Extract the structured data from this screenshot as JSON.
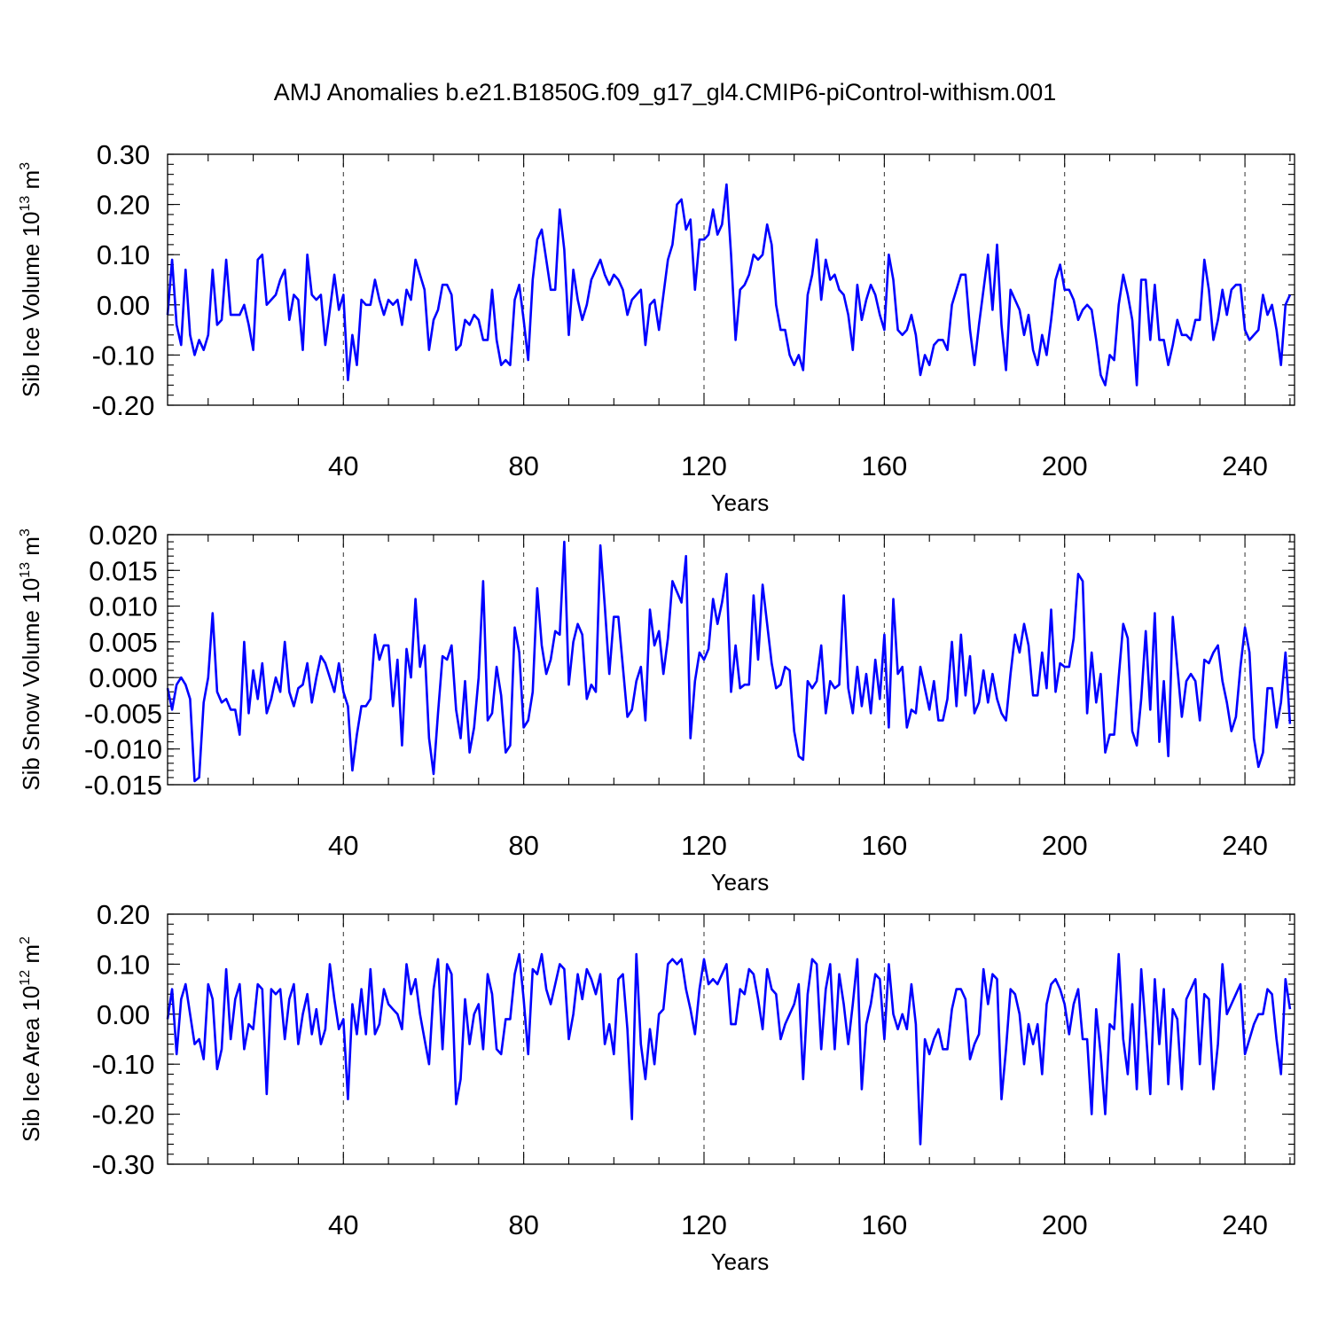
{
  "title": "AMJ Anomalies b.e21.B1850G.f09_g17_gl4.CMIP6-piControl-withism.001",
  "line_color": "#0000ff",
  "chart_data": [
    {
      "type": "line",
      "name": "sib-ice-volume",
      "ylabel_main": "Sib Ice Volume 10",
      "ylabel_exp": "13",
      "ylabel_unit": "m",
      "ylabel_unit_exp": "3",
      "xlabel": "Years",
      "xlim": [
        1,
        251
      ],
      "ylim": [
        -0.2,
        0.3
      ],
      "x_ticks": [
        40,
        80,
        120,
        160,
        200,
        240
      ],
      "x_tick_labels": [
        "40",
        "80",
        "120",
        "160",
        "200",
        "240"
      ],
      "y_ticks": [
        -0.2,
        -0.1,
        0.0,
        0.1,
        0.2,
        0.3
      ],
      "y_tick_labels": [
        "-0.20",
        "-0.10",
        "0.00",
        "0.10",
        "0.20",
        "0.30"
      ],
      "y_minor": 0.02,
      "grid_x": true,
      "x_start": 1,
      "values": [
        -0.02,
        0.09,
        -0.04,
        -0.08,
        0.07,
        -0.06,
        -0.1,
        -0.07,
        -0.09,
        -0.06,
        0.07,
        -0.04,
        -0.03,
        0.09,
        -0.02,
        -0.02,
        -0.02,
        0.0,
        -0.04,
        -0.09,
        0.09,
        0.1,
        0.0,
        0.01,
        0.02,
        0.05,
        0.07,
        -0.03,
        0.02,
        0.01,
        -0.09,
        0.1,
        0.02,
        0.01,
        0.02,
        -0.08,
        -0.01,
        0.06,
        -0.01,
        0.02,
        -0.15,
        -0.06,
        -0.12,
        0.01,
        0.0,
        0.0,
        0.05,
        0.01,
        -0.02,
        0.01,
        0.0,
        0.01,
        -0.04,
        0.03,
        0.01,
        0.09,
        0.06,
        0.03,
        -0.09,
        -0.03,
        -0.01,
        0.04,
        0.04,
        0.02,
        -0.09,
        -0.08,
        -0.03,
        -0.04,
        -0.02,
        -0.03,
        -0.07,
        -0.07,
        0.03,
        -0.07,
        -0.12,
        -0.11,
        -0.12,
        0.01,
        0.04,
        -0.03,
        -0.11,
        0.05,
        0.13,
        0.15,
        0.09,
        0.03,
        0.03,
        0.19,
        0.11,
        -0.06,
        0.07,
        0.01,
        -0.03,
        0.0,
        0.05,
        0.07,
        0.09,
        0.06,
        0.04,
        0.06,
        0.05,
        0.03,
        -0.02,
        0.01,
        0.02,
        0.03,
        -0.08,
        0.0,
        0.01,
        -0.05,
        0.02,
        0.09,
        0.12,
        0.2,
        0.21,
        0.15,
        0.17,
        0.03,
        0.13,
        0.13,
        0.14,
        0.19,
        0.14,
        0.16,
        0.24,
        0.1,
        -0.07,
        0.03,
        0.04,
        0.06,
        0.1,
        0.09,
        0.1,
        0.16,
        0.12,
        0.0,
        -0.05,
        -0.05,
        -0.1,
        -0.12,
        -0.1,
        -0.13,
        0.02,
        0.06,
        0.13,
        0.01,
        0.09,
        0.05,
        0.06,
        0.03,
        0.02,
        -0.02,
        -0.09,
        0.04,
        -0.03,
        0.01,
        0.04,
        0.02,
        -0.02,
        -0.05,
        0.1,
        0.05,
        -0.05,
        -0.06,
        -0.05,
        -0.02,
        -0.06,
        -0.14,
        -0.1,
        -0.12,
        -0.08,
        -0.07,
        -0.07,
        -0.09,
        0.0,
        0.03,
        0.06,
        0.06,
        -0.05,
        -0.12,
        -0.04,
        0.03,
        0.1,
        -0.01,
        0.12,
        -0.04,
        -0.13,
        0.03,
        0.01,
        -0.01,
        -0.06,
        -0.02,
        -0.09,
        -0.12,
        -0.06,
        -0.1,
        -0.03,
        0.05,
        0.08,
        0.03,
        0.03,
        0.01,
        -0.03,
        -0.01,
        0.0,
        -0.01,
        -0.07,
        -0.14,
        -0.16,
        -0.1,
        -0.11,
        0.0,
        0.06,
        0.02,
        -0.03,
        -0.16,
        0.05,
        0.05,
        -0.07,
        0.04,
        -0.07,
        -0.07,
        -0.12,
        -0.08,
        -0.03,
        -0.06,
        -0.06,
        -0.07,
        -0.03,
        -0.03,
        0.09,
        0.03,
        -0.07,
        -0.03,
        0.03,
        -0.02,
        0.03,
        0.04,
        0.04,
        -0.05,
        -0.07,
        -0.06,
        -0.05,
        0.02,
        -0.02,
        0.0,
        -0.05,
        -0.12,
        0.0,
        0.02
      ]
    },
    {
      "type": "line",
      "name": "sib-snow-volume",
      "ylabel_main": "Sib Snow Volume 10",
      "ylabel_exp": "13",
      "ylabel_unit": "m",
      "ylabel_unit_exp": "3",
      "xlabel": "Years",
      "xlim": [
        1,
        251
      ],
      "ylim": [
        -0.015,
        0.02
      ],
      "x_ticks": [
        40,
        80,
        120,
        160,
        200,
        240
      ],
      "x_tick_labels": [
        "40",
        "80",
        "120",
        "160",
        "200",
        "240"
      ],
      "y_ticks": [
        -0.015,
        -0.01,
        -0.005,
        0.0,
        0.005,
        0.01,
        0.015,
        0.02
      ],
      "y_tick_labels": [
        "-0.015",
        "-0.010",
        "-0.005",
        "0.000",
        "0.005",
        "0.010",
        "0.015",
        "0.020"
      ],
      "y_minor": 0.001,
      "grid_x": true,
      "x_start": 1,
      "values": [
        -0.0015,
        -0.0045,
        -0.001,
        0.0,
        -0.001,
        -0.003,
        -0.0145,
        -0.014,
        -0.0035,
        0.0,
        0.009,
        -0.002,
        -0.0035,
        -0.003,
        -0.0045,
        -0.0045,
        -0.008,
        0.005,
        -0.005,
        0.001,
        -0.003,
        0.002,
        -0.005,
        -0.003,
        0.0,
        -0.002,
        0.005,
        -0.002,
        -0.004,
        -0.0015,
        -0.001,
        0.002,
        -0.0035,
        0.0,
        0.003,
        0.002,
        0.0,
        -0.002,
        0.002,
        -0.002,
        -0.004,
        -0.013,
        -0.008,
        -0.004,
        -0.004,
        -0.003,
        0.006,
        0.0025,
        0.0045,
        0.0045,
        -0.004,
        0.0025,
        -0.0095,
        0.004,
        0.0,
        0.011,
        0.0015,
        0.0045,
        -0.0085,
        -0.0135,
        -0.005,
        0.003,
        0.0025,
        0.0045,
        -0.0045,
        -0.0085,
        -0.0005,
        -0.0105,
        -0.007,
        0.0,
        0.0135,
        -0.006,
        -0.005,
        0.0015,
        -0.0025,
        -0.0105,
        -0.0095,
        0.007,
        0.0035,
        -0.007,
        -0.006,
        -0.002,
        0.0125,
        0.0045,
        0.0005,
        0.0025,
        0.0065,
        0.006,
        0.019,
        -0.001,
        0.005,
        0.0075,
        0.006,
        -0.003,
        -0.001,
        -0.002,
        0.0185,
        0.01,
        0.0005,
        0.0085,
        0.0085,
        0.0015,
        -0.0055,
        -0.0045,
        -0.0005,
        0.0015,
        -0.006,
        0.0095,
        0.0045,
        0.0065,
        0.0005,
        0.0055,
        0.0135,
        0.012,
        0.0105,
        0.017,
        -0.0085,
        -0.0005,
        0.0035,
        0.0025,
        0.004,
        0.011,
        0.0075,
        0.0105,
        0.0145,
        -0.002,
        0.0045,
        -0.0015,
        -0.001,
        -0.001,
        0.0115,
        0.0025,
        0.013,
        0.0075,
        0.002,
        -0.0015,
        -0.001,
        0.0015,
        0.001,
        -0.0075,
        -0.011,
        -0.0115,
        -0.0005,
        -0.0015,
        -0.0005,
        0.0045,
        -0.005,
        -0.0005,
        -0.0015,
        -0.001,
        0.0115,
        -0.0015,
        -0.005,
        0.0015,
        -0.004,
        0.0005,
        -0.005,
        0.0025,
        -0.003,
        0.006,
        -0.007,
        0.011,
        0.0005,
        0.0015,
        -0.007,
        -0.0045,
        -0.005,
        0.0015,
        -0.0015,
        -0.0045,
        -0.0005,
        -0.006,
        -0.006,
        -0.003,
        0.005,
        -0.004,
        0.006,
        -0.0025,
        0.003,
        -0.005,
        -0.0035,
        0.001,
        -0.0035,
        0.0005,
        -0.003,
        -0.005,
        -0.006,
        0.0005,
        0.006,
        0.0035,
        0.0075,
        0.0045,
        -0.0025,
        -0.0025,
        0.0035,
        -0.0015,
        0.0095,
        -0.002,
        0.002,
        0.0015,
        0.0015,
        0.0055,
        0.0145,
        0.0135,
        -0.005,
        0.0035,
        -0.0035,
        0.0005,
        -0.0105,
        -0.008,
        -0.008,
        0.0,
        0.0075,
        0.0055,
        -0.0075,
        -0.0095,
        -0.003,
        0.0065,
        -0.0045,
        0.009,
        -0.009,
        -0.0005,
        -0.011,
        0.0085,
        0.0015,
        -0.0055,
        -0.0005,
        0.0005,
        -0.0005,
        -0.006,
        0.0025,
        0.002,
        0.0035,
        0.0045,
        -0.0005,
        -0.0035,
        -0.0075,
        -0.0055,
        0.0015,
        0.007,
        0.0035,
        -0.0085,
        -0.0125,
        -0.0105,
        -0.0015,
        -0.0015,
        -0.007,
        -0.0035,
        0.0035,
        -0.0065
      ]
    },
    {
      "type": "line",
      "name": "sib-ice-area",
      "ylabel_main": "Sib Ice Area 10",
      "ylabel_exp": "12",
      "ylabel_unit": "m",
      "ylabel_unit_exp": "2",
      "xlabel": "Years",
      "xlim": [
        1,
        251
      ],
      "ylim": [
        -0.3,
        0.2
      ],
      "x_ticks": [
        40,
        80,
        120,
        160,
        200,
        240
      ],
      "x_tick_labels": [
        "40",
        "80",
        "120",
        "160",
        "200",
        "240"
      ],
      "y_ticks": [
        -0.3,
        -0.2,
        -0.1,
        0.0,
        0.1,
        0.2
      ],
      "y_tick_labels": [
        "-0.30",
        "-0.20",
        "-0.10",
        "0.00",
        "0.10",
        "0.20"
      ],
      "y_minor": 0.02,
      "grid_x": true,
      "x_start": 1,
      "values": [
        -0.01,
        0.05,
        -0.08,
        0.03,
        0.06,
        0.0,
        -0.06,
        -0.05,
        -0.09,
        0.06,
        0.03,
        -0.11,
        -0.07,
        0.09,
        -0.05,
        0.03,
        0.06,
        -0.07,
        -0.02,
        -0.03,
        0.06,
        0.05,
        -0.16,
        0.05,
        0.04,
        0.05,
        -0.05,
        0.03,
        0.06,
        -0.06,
        0.0,
        0.04,
        -0.04,
        0.01,
        -0.06,
        -0.03,
        0.1,
        0.03,
        -0.03,
        -0.01,
        -0.17,
        0.02,
        -0.04,
        0.05,
        -0.04,
        0.09,
        -0.04,
        -0.02,
        0.05,
        0.02,
        0.01,
        0.0,
        -0.03,
        0.1,
        0.04,
        0.07,
        0.0,
        -0.05,
        -0.1,
        0.05,
        0.11,
        -0.07,
        0.1,
        0.08,
        -0.18,
        -0.13,
        0.03,
        -0.06,
        0.0,
        0.02,
        -0.07,
        0.08,
        0.04,
        -0.07,
        -0.08,
        -0.01,
        -0.01,
        0.08,
        0.12,
        0.03,
        -0.08,
        0.09,
        0.08,
        0.12,
        0.05,
        0.02,
        0.06,
        0.1,
        0.09,
        -0.05,
        0.0,
        0.08,
        0.03,
        0.09,
        0.07,
        0.04,
        0.08,
        -0.06,
        -0.02,
        -0.08,
        0.07,
        0.08,
        -0.03,
        -0.21,
        0.12,
        -0.06,
        -0.13,
        -0.03,
        -0.1,
        0.0,
        0.01,
        0.1,
        0.11,
        0.1,
        0.11,
        0.05,
        0.01,
        -0.04,
        0.05,
        0.11,
        0.06,
        0.07,
        0.06,
        0.08,
        0.1,
        -0.02,
        -0.02,
        0.05,
        0.04,
        0.09,
        0.08,
        0.03,
        -0.03,
        0.09,
        0.05,
        0.04,
        -0.05,
        -0.02,
        0.0,
        0.02,
        0.06,
        -0.13,
        0.04,
        0.11,
        0.1,
        -0.07,
        0.05,
        0.1,
        -0.07,
        0.08,
        0.02,
        -0.06,
        0.02,
        0.11,
        -0.15,
        -0.02,
        0.02,
        0.08,
        0.07,
        -0.05,
        0.1,
        0.0,
        -0.03,
        0.0,
        -0.03,
        0.06,
        -0.02,
        -0.26,
        -0.05,
        -0.08,
        -0.05,
        -0.03,
        -0.07,
        -0.07,
        0.01,
        0.05,
        0.05,
        0.03,
        -0.09,
        -0.06,
        -0.04,
        0.09,
        0.02,
        0.08,
        0.07,
        -0.17,
        -0.07,
        0.05,
        0.04,
        0.0,
        -0.1,
        -0.02,
        -0.06,
        -0.02,
        -0.12,
        0.02,
        0.06,
        0.07,
        0.05,
        0.02,
        -0.04,
        0.02,
        0.05,
        -0.05,
        -0.05,
        -0.2,
        0.01,
        -0.08,
        -0.2,
        -0.02,
        -0.03,
        0.12,
        -0.05,
        -0.12,
        0.02,
        -0.15,
        0.09,
        -0.03,
        -0.16,
        0.07,
        -0.06,
        0.05,
        -0.14,
        0.01,
        -0.01,
        -0.15,
        0.03,
        0.05,
        0.07,
        -0.1,
        0.04,
        0.03,
        -0.15,
        -0.06,
        0.1,
        0.0,
        0.02,
        0.04,
        0.06,
        -0.08,
        -0.05,
        -0.02,
        0.0,
        0.0,
        0.05,
        0.04,
        -0.05,
        -0.12,
        0.07,
        0.01
      ]
    }
  ]
}
